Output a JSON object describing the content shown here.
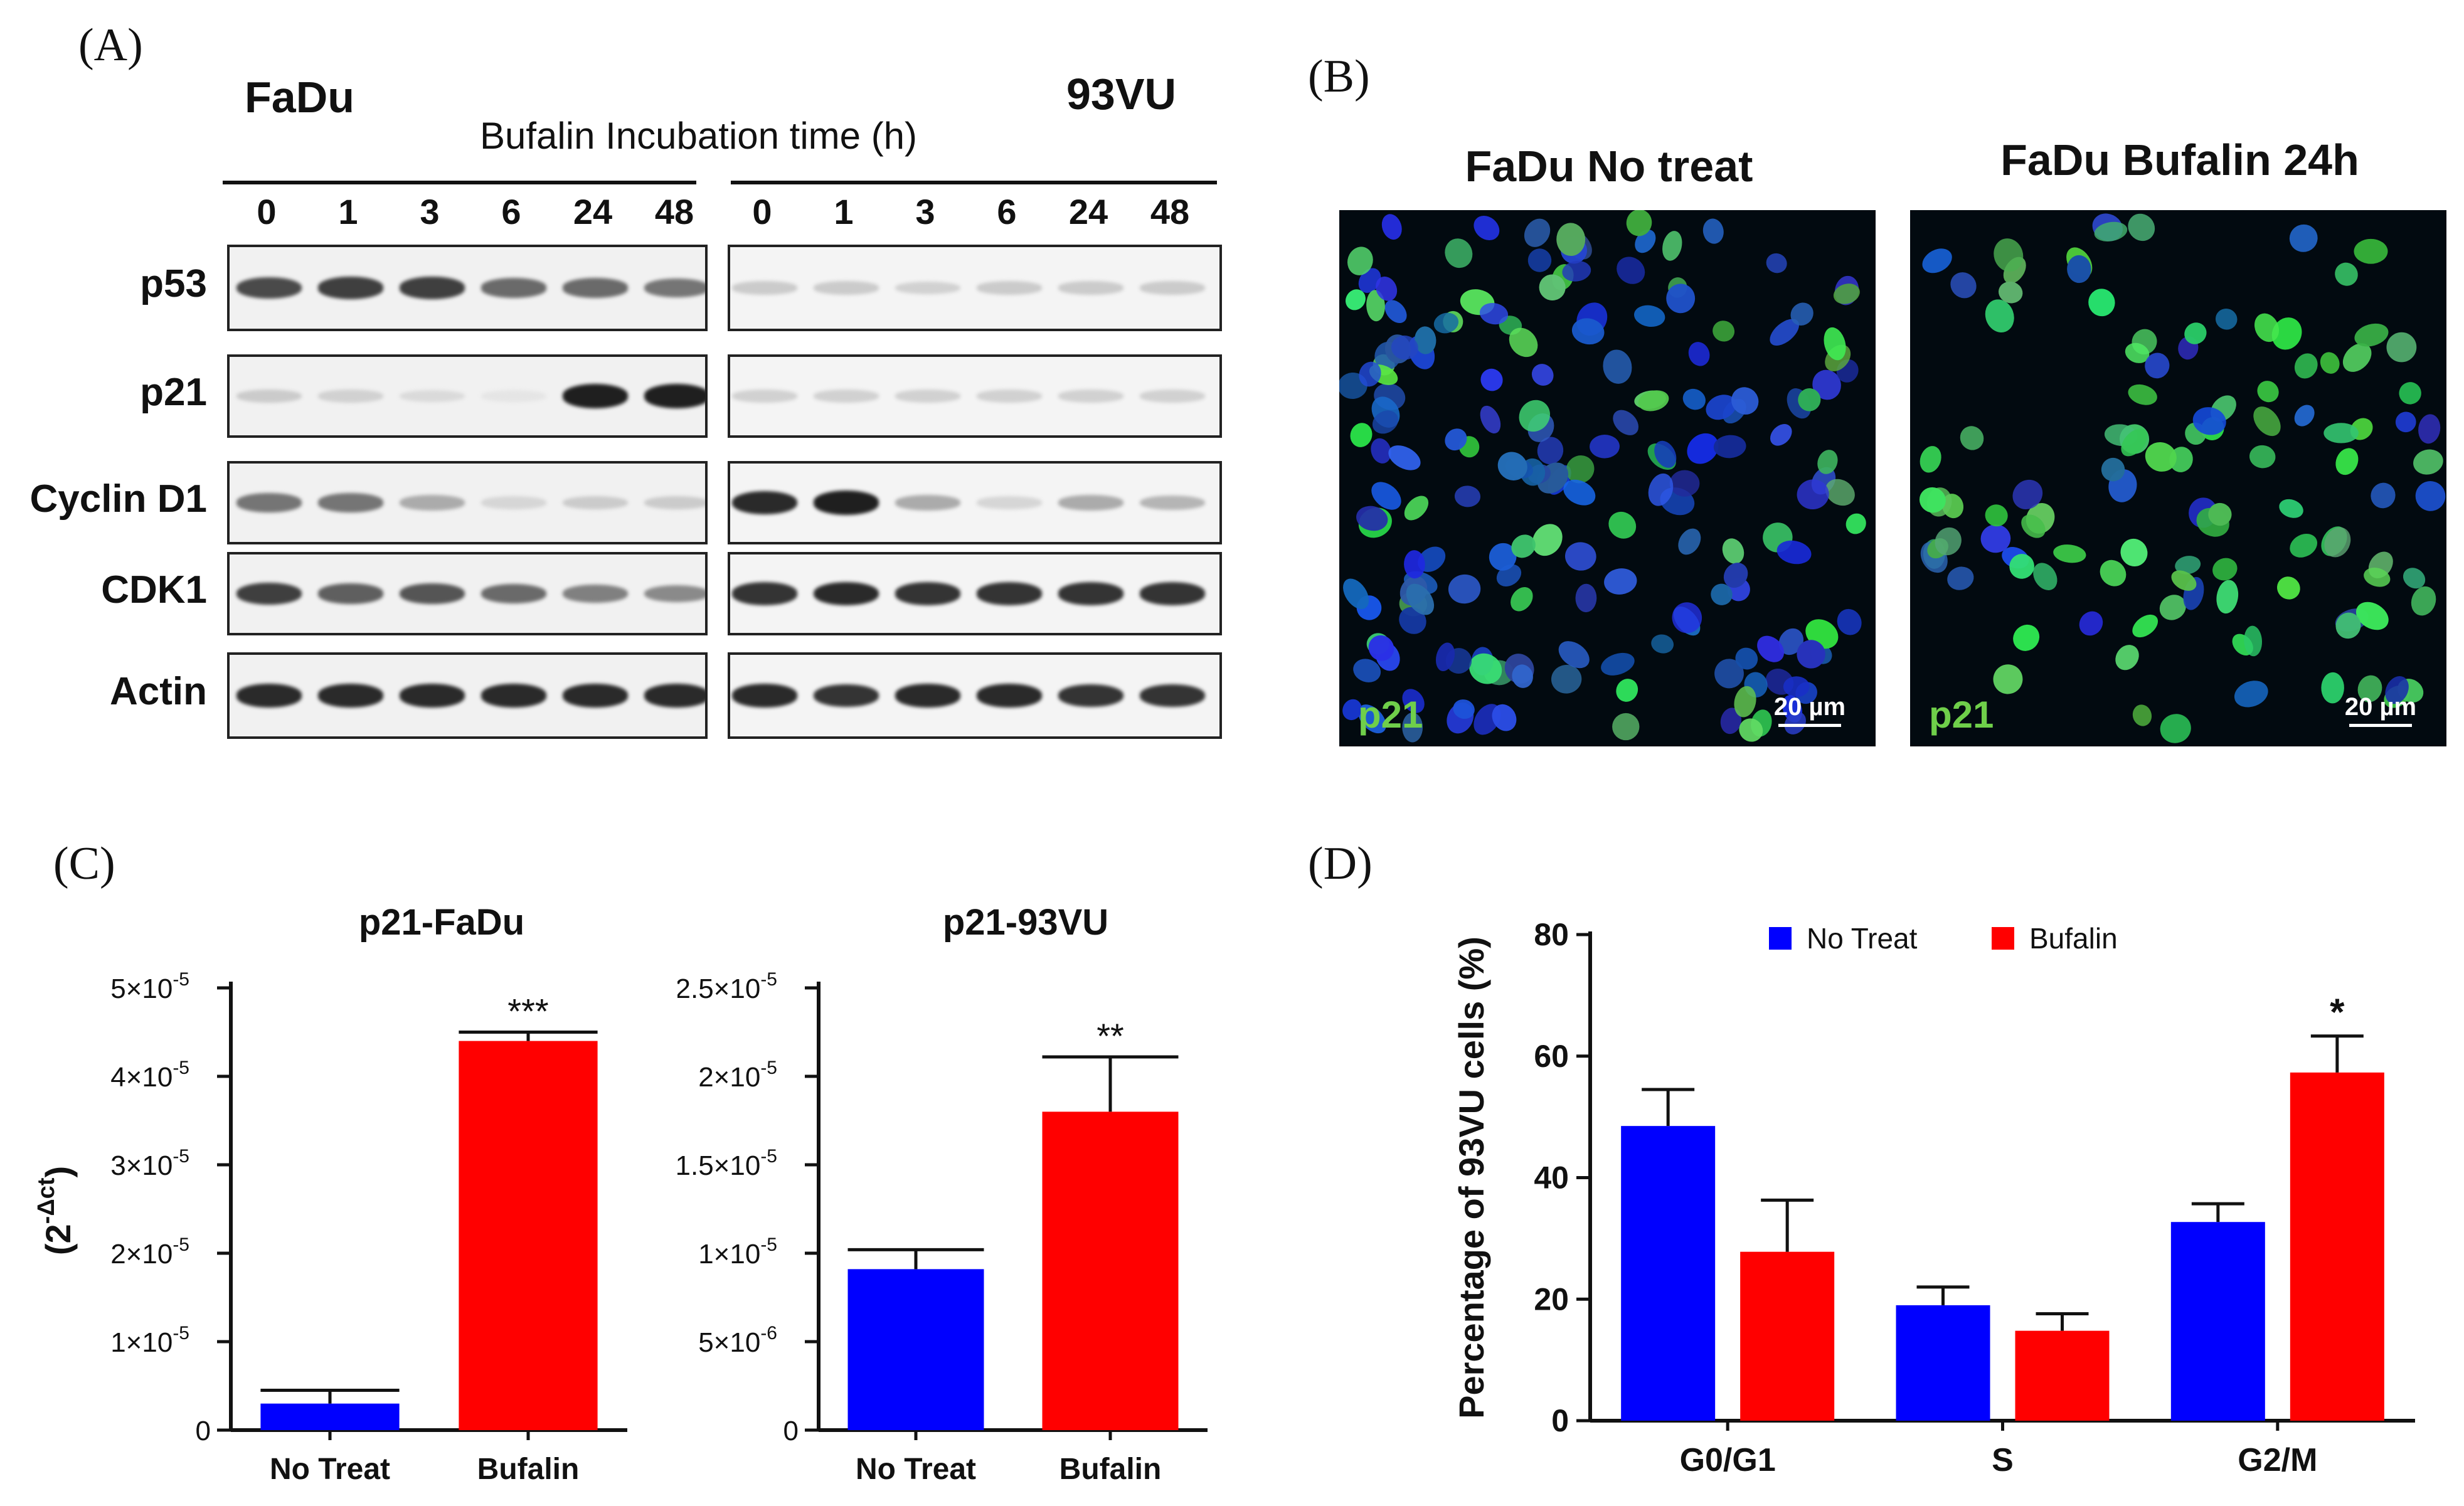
{
  "panels": {
    "A": {
      "letter": "(A)",
      "cell_lines": [
        "FaDu",
        "93VU"
      ],
      "axis_caption": "Bufalin Incubation time (h)",
      "time_points": [
        "0",
        "1",
        "3",
        "6",
        "24",
        "48"
      ],
      "proteins": [
        "p53",
        "p21",
        "Cyclin D1",
        "CDK1",
        "Actin"
      ],
      "band_intensity": {
        "FaDu": {
          "p53": [
            0.75,
            0.8,
            0.8,
            0.6,
            0.6,
            0.55
          ],
          "p21": [
            0.15,
            0.12,
            0.08,
            0.03,
            0.95,
            0.95
          ],
          "Cyclin D1": [
            0.55,
            0.55,
            0.3,
            0.1,
            0.15,
            0.15
          ],
          "CDK1": [
            0.8,
            0.65,
            0.7,
            0.6,
            0.5,
            0.45
          ],
          "Actin": [
            0.9,
            0.9,
            0.9,
            0.9,
            0.9,
            0.9
          ]
        },
        "93VU": {
          "p53": [
            0.15,
            0.15,
            0.12,
            0.15,
            0.15,
            0.15
          ],
          "p21": [
            0.12,
            0.12,
            0.12,
            0.12,
            0.12,
            0.12
          ],
          "Cyclin D1": [
            0.9,
            0.95,
            0.3,
            0.1,
            0.3,
            0.25
          ],
          "CDK1": [
            0.85,
            0.9,
            0.85,
            0.85,
            0.85,
            0.85
          ],
          "Actin": [
            0.9,
            0.85,
            0.9,
            0.9,
            0.85,
            0.85
          ]
        }
      }
    },
    "B": {
      "letter": "(B)",
      "images": [
        {
          "title": "FaDu No treat",
          "stain": "p21",
          "scale": "20 µm"
        },
        {
          "title": "FaDu Bufalin 24h",
          "stain": "p21",
          "scale": "20 µm"
        }
      ]
    },
    "C": {
      "letter": "(C)"
    },
    "D": {
      "letter": "(D)"
    }
  },
  "chart_data": [
    {
      "type": "bar",
      "title": "p21-FaDu",
      "ylabel": "(2^-Δct)",
      "categories": [
        "No Treat",
        "Bufalin"
      ],
      "values": [
        3e-06,
        4.4e-05
      ],
      "errors": [
        1.5e-06,
        1e-06
      ],
      "colors": [
        "#0000ff",
        "#ff0000"
      ],
      "ylim": [
        0,
        5e-05
      ],
      "yticks": [
        0,
        1e-05,
        2e-05,
        3e-05,
        4e-05,
        5e-05
      ],
      "ytick_labels": [
        "0",
        "1×10",
        "2×10",
        "3×10",
        "4×10",
        "5×10"
      ],
      "ytick_exponents": [
        "",
        "-5",
        "-5",
        "-5",
        "-5",
        "-5"
      ],
      "significance": [
        "",
        "***"
      ]
    },
    {
      "type": "bar",
      "title": "p21-93VU",
      "categories": [
        "No Treat",
        "Bufalin"
      ],
      "values": [
        9.1e-06,
        1.8e-05
      ],
      "errors": [
        1.1e-06,
        3.1e-06
      ],
      "colors": [
        "#0000ff",
        "#ff0000"
      ],
      "ylim": [
        0,
        2.5e-05
      ],
      "yticks": [
        0,
        5e-06,
        1e-05,
        1.5e-05,
        2e-05,
        2.5e-05
      ],
      "ytick_labels": [
        "0",
        "5×10",
        "1×10",
        "1.5×10",
        "2×10",
        "2.5×10"
      ],
      "ytick_exponents": [
        "",
        "-6",
        "-5",
        "-5",
        "-5",
        "-5"
      ],
      "significance": [
        "",
        "**"
      ]
    },
    {
      "type": "bar",
      "ylabel": "Percentage of 93VU cells (%)",
      "categories": [
        "G0/G1",
        "S",
        "G2/M"
      ],
      "series": [
        {
          "name": "No Treat",
          "color": "#0000ff",
          "values": [
            48.5,
            19,
            32.7
          ],
          "errors": [
            6,
            3,
            3
          ]
        },
        {
          "name": "Bufalin",
          "color": "#ff0000",
          "values": [
            27.8,
            14.8,
            57.3
          ],
          "errors": [
            8.5,
            2.8,
            6
          ]
        }
      ],
      "ylim": [
        0,
        80
      ],
      "yticks": [
        0,
        20,
        40,
        60,
        80
      ],
      "legend": "top",
      "significance": [
        "",
        "",
        "*"
      ]
    }
  ]
}
